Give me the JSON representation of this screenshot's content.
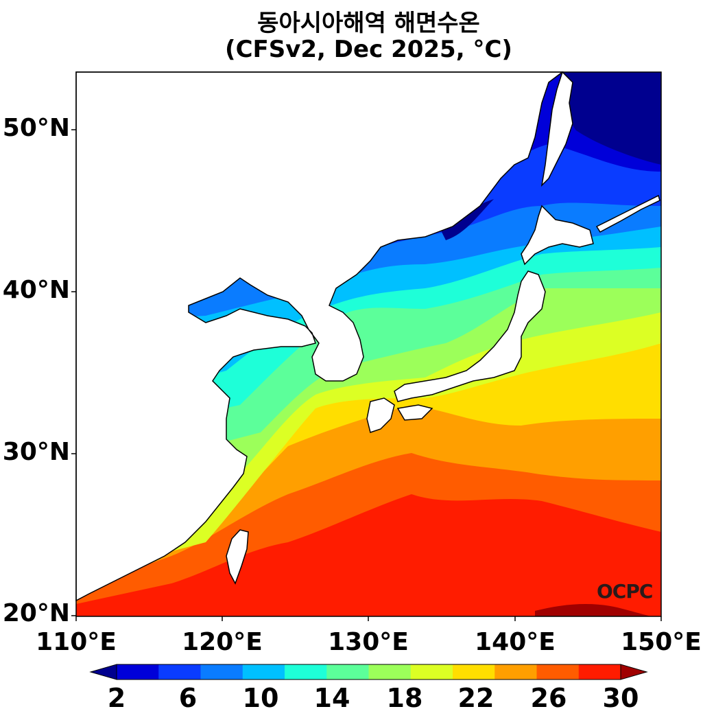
{
  "title": "동아시아해역 해면수온",
  "subtitle": "(CFSv2, Dec 2025, °C)",
  "watermark": "OCPC",
  "axes": {
    "y_ticks": [
      "50°N",
      "40°N",
      "30°N",
      "20°N"
    ],
    "x_ticks": [
      "110°E",
      "120°E",
      "130°E",
      "140°E",
      "150°E"
    ]
  },
  "colorbar": {
    "labels": [
      "2",
      "6",
      "10",
      "14",
      "18",
      "22",
      "26",
      "30"
    ],
    "colors": [
      "#00008f",
      "#0000d9",
      "#0a3cff",
      "#0a7cff",
      "#00c0ff",
      "#1effd8",
      "#5cff9a",
      "#9cff5a",
      "#dcff24",
      "#ffde00",
      "#ff9f00",
      "#ff5c00",
      "#ff1c00",
      "#a00000"
    ]
  }
}
